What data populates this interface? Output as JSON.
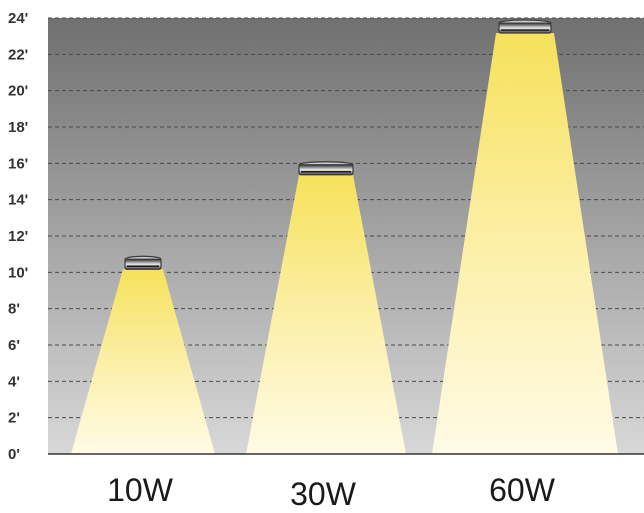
{
  "chart_data": {
    "type": "bar",
    "categories": [
      "10W",
      "30W",
      "60W"
    ],
    "values": [
      10.5,
      15.7,
      23.5
    ],
    "y_unit": "ft",
    "ylim": [
      0,
      24
    ],
    "y_ticks": [
      "0'",
      "2'",
      "4'",
      "6'",
      "8'",
      "10'",
      "12'",
      "14'",
      "16'",
      "18'",
      "20'",
      "22'",
      "24'"
    ],
    "grid": true,
    "title": "",
    "xlabel": "",
    "ylabel": ""
  },
  "colors": {
    "background_top": "#707070",
    "background_bottom": "#d8d8d8",
    "beam_top": "#f6e15a",
    "beam_bottom": "#fffbe6",
    "fixture": "#3a3a3a",
    "grid": "#4a4a4a"
  },
  "icon_names": [
    "light-fixture-icon"
  ]
}
